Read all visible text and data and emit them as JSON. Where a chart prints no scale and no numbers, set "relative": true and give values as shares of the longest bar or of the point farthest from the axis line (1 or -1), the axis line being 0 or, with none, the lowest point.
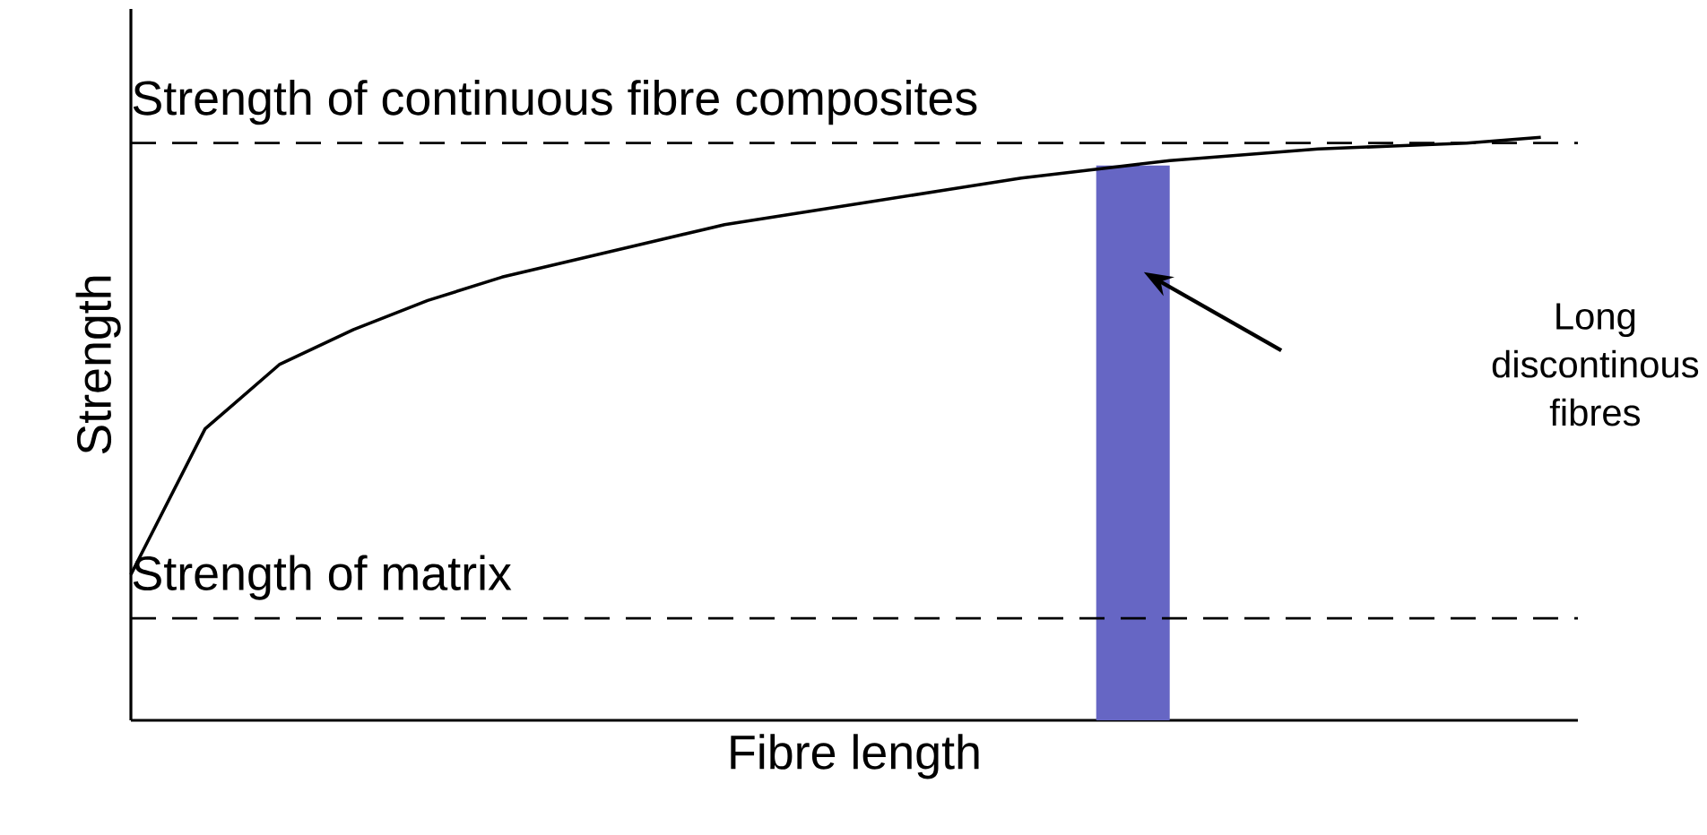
{
  "chart_data": {
    "type": "line",
    "relative": true,
    "xlabel": "Fibre length",
    "ylabel": "Strength",
    "categories": [
      null,
      null,
      null,
      null,
      null,
      null,
      null,
      null,
      null,
      null,
      null,
      null,
      null,
      null,
      null,
      null,
      null,
      null,
      null,
      null
    ],
    "series": [
      {
        "color": "#000000",
        "values": [
          0.25,
          0.5,
          0.61,
          0.67,
          0.72,
          0.76,
          0.79,
          0.82,
          0.85,
          0.87,
          0.89,
          0.91,
          0.93,
          0.945,
          0.96,
          0.97,
          0.98,
          0.985,
          0.99,
          1.0
        ]
      }
    ],
    "ref_lines": [
      {
        "axis": "y",
        "value": 0.99,
        "label": "Strength of continuous fibre composites",
        "color": "#000000",
        "line_style": "dashed"
      },
      {
        "axis": "y",
        "value": 0.175,
        "label": "Strength of matrix",
        "color": "#000000",
        "line_style": "dashed"
      }
    ],
    "annotations": [
      "Long discontinous fibres"
    ],
    "marker": "none",
    "line_style": "solid"
  }
}
